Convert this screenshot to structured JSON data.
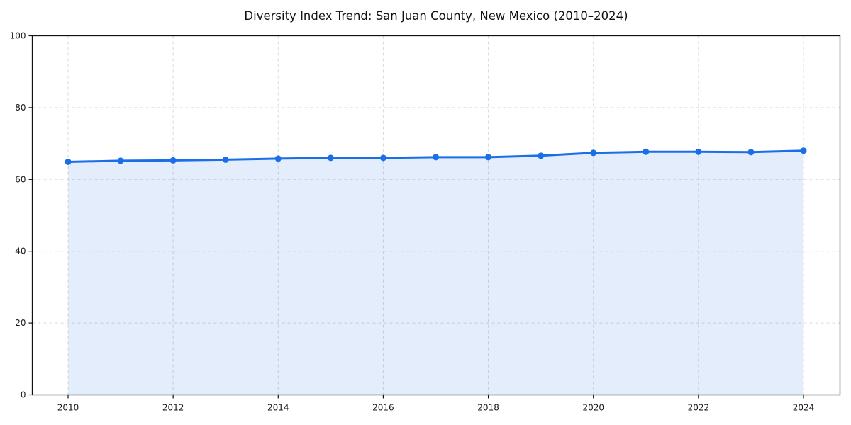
{
  "chart_data": {
    "type": "line",
    "title": "Diversity Index Trend: San Juan County, New Mexico (2010–2024)",
    "x": [
      2010,
      2011,
      2012,
      2013,
      2014,
      2015,
      2016,
      2017,
      2018,
      2019,
      2020,
      2021,
      2022,
      2023,
      2024
    ],
    "series": [
      {
        "name": "Diversity Index",
        "values": [
          64.9,
          65.2,
          65.3,
          65.5,
          65.8,
          66.0,
          66.0,
          66.2,
          66.2,
          66.6,
          67.4,
          67.7,
          67.7,
          67.6,
          68.0
        ]
      }
    ],
    "xlabel": "",
    "ylabel": "",
    "xlim": [
      2009.3,
      2024.7
    ],
    "ylim": [
      0,
      100
    ],
    "yticks": [
      0,
      20,
      40,
      60,
      80,
      100
    ],
    "xticks": [
      2010,
      2012,
      2014,
      2016,
      2018,
      2020,
      2022,
      2024
    ],
    "grid": true,
    "grid_style": "dashed",
    "legend": "none",
    "marker": "circle",
    "colors": {
      "line": "#1a6fe8",
      "marker": "#1a6fe8",
      "fill": "#1a6fe8",
      "fill_opacity": 0.12,
      "frame": "#111111",
      "grid": "#d9d9d9",
      "tick_text": "#1a1a1a",
      "background": "#ffffff"
    }
  }
}
